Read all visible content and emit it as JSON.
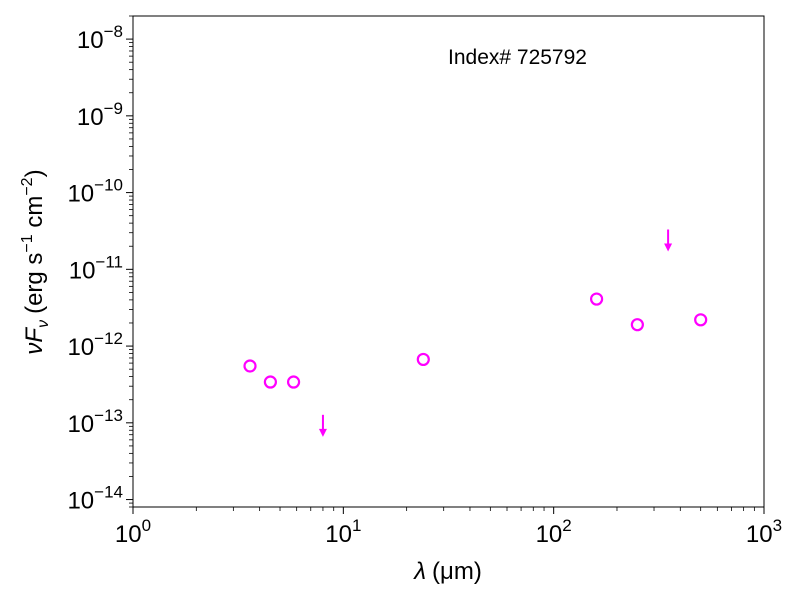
{
  "chart_data": {
    "type": "scatter",
    "annotation": "Index# 725792",
    "xlabel": {
      "symbol": "λ",
      "unit": "(μm)"
    },
    "ylabel": {
      "symbol": "ν",
      "sub_symbol": "F",
      "subscript": "ν",
      "unit_base": "(erg s",
      "unit_exp1": "−1",
      "unit_mid": " cm",
      "unit_exp2": "−2",
      "unit_close": ")"
    },
    "xscale": "log",
    "yscale": "log",
    "xlim": [
      1,
      1000
    ],
    "ylim": [
      8e-15,
      2e-08
    ],
    "x_ticks": [
      {
        "value": 1,
        "base": "10",
        "exp": "0"
      },
      {
        "value": 10,
        "base": "10",
        "exp": "1"
      },
      {
        "value": 100,
        "base": "10",
        "exp": "2"
      },
      {
        "value": 1000,
        "base": "10",
        "exp": "3"
      }
    ],
    "y_ticks": [
      {
        "value": 1e-14,
        "base": "10",
        "exp": "−14"
      },
      {
        "value": 1e-13,
        "base": "10",
        "exp": "−13"
      },
      {
        "value": 1e-12,
        "base": "10",
        "exp": "−12"
      },
      {
        "value": 1e-11,
        "base": "10",
        "exp": "−11"
      },
      {
        "value": 1e-10,
        "base": "10",
        "exp": "−10"
      },
      {
        "value": 1e-09,
        "base": "10",
        "exp": "−9"
      },
      {
        "value": 1e-08,
        "base": "10",
        "exp": "−8"
      }
    ],
    "marker_color": "#ff00ff",
    "detections": [
      {
        "x": 3.6,
        "y": 5.5e-13
      },
      {
        "x": 4.5,
        "y": 3.4e-13
      },
      {
        "x": 5.8,
        "y": 3.4e-13
      },
      {
        "x": 24,
        "y": 6.7e-13
      },
      {
        "x": 160,
        "y": 4.1e-12
      },
      {
        "x": 250,
        "y": 1.9e-12
      },
      {
        "x": 500,
        "y": 2.2e-12
      }
    ],
    "upper_limits": [
      {
        "x": 8.0,
        "y": 1e-13
      },
      {
        "x": 350,
        "y": 2.6e-11
      }
    ]
  }
}
